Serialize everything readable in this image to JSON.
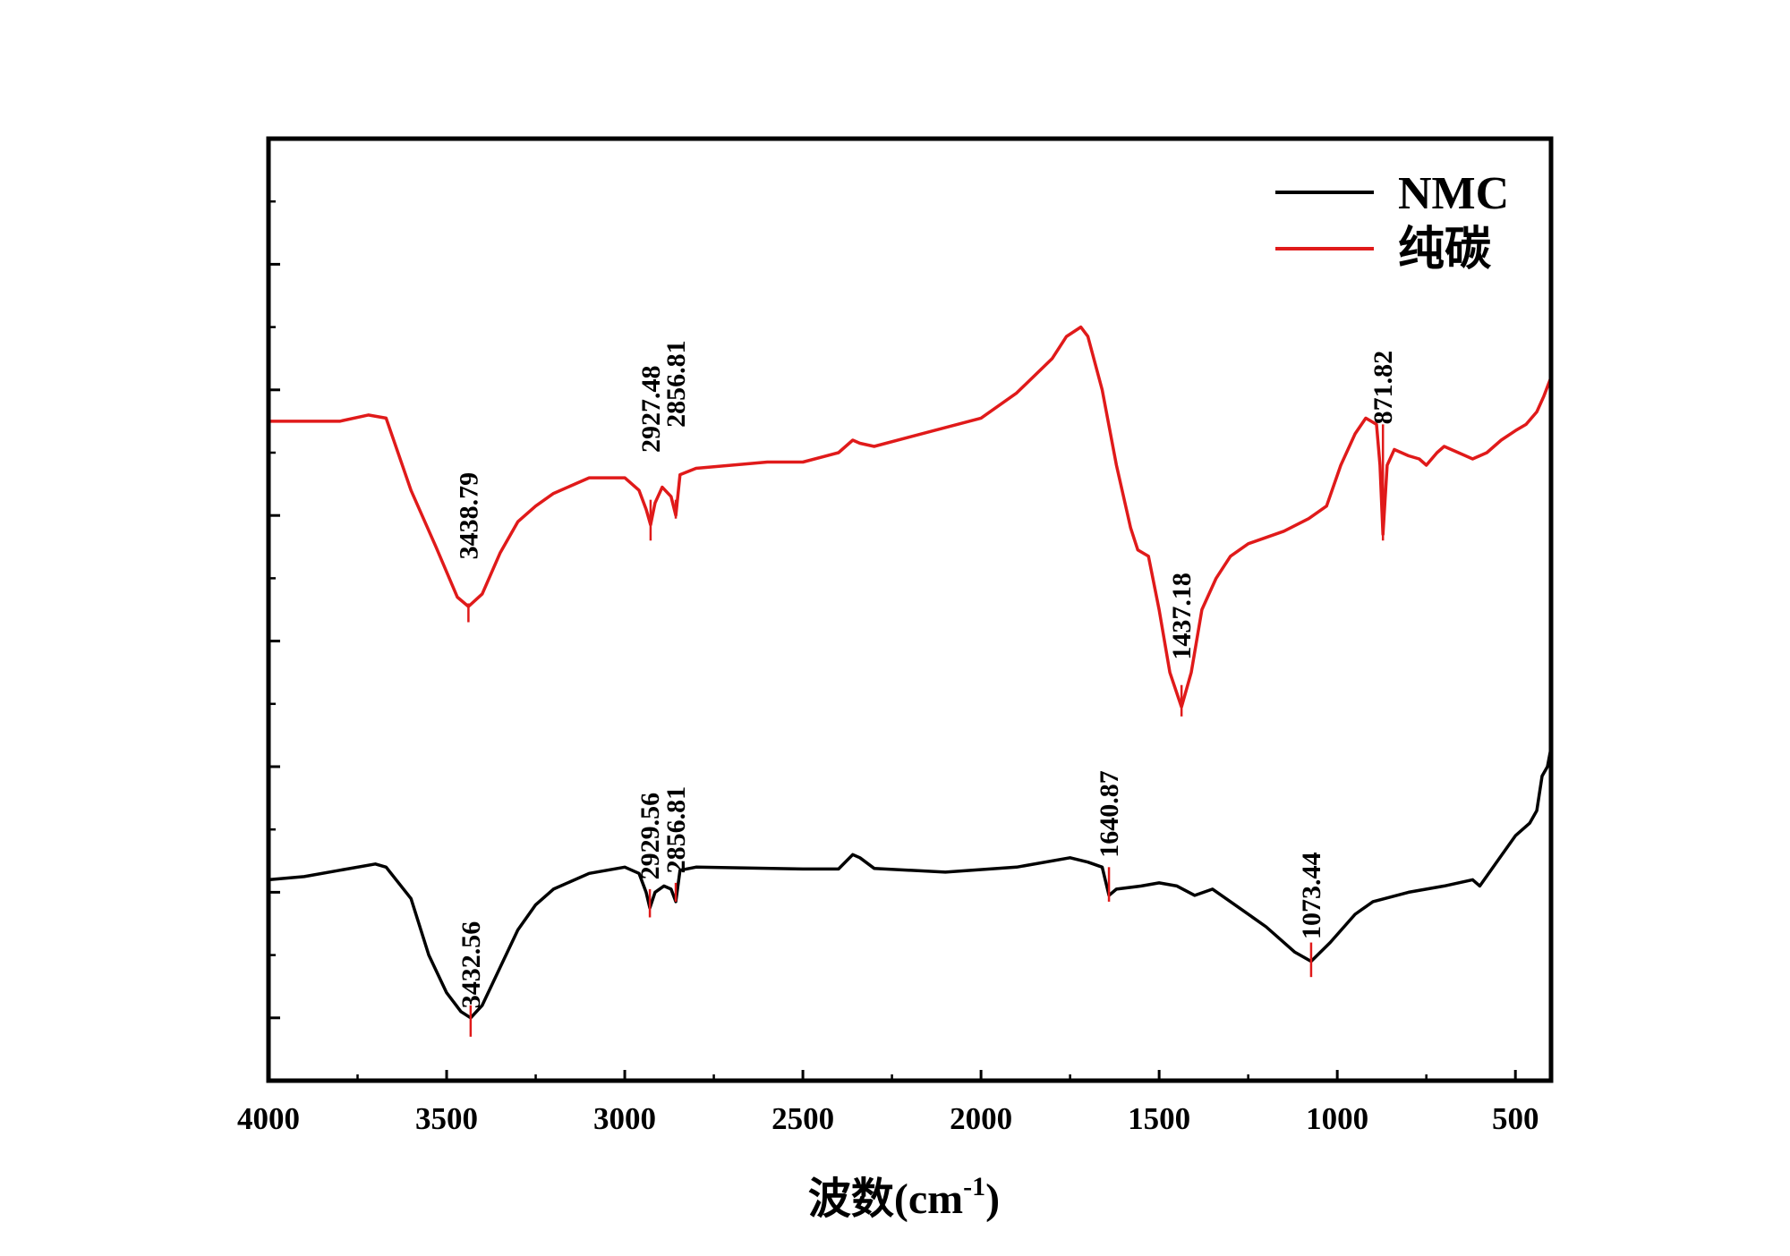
{
  "chart_data": {
    "type": "line",
    "title": "",
    "xlabel": "波数(cm",
    "xlabel_sup": "-1",
    "xlabel_close": ")",
    "ylabel": "",
    "xlim": [
      4000,
      400
    ],
    "ylim": [
      0,
      15
    ],
    "x_ticks": [
      4000,
      3500,
      3000,
      2500,
      2000,
      1500,
      1000,
      500
    ],
    "x_tick_labels": [
      "4000",
      "3500",
      "3000",
      "2500",
      "2000",
      "1500",
      "1000",
      "500"
    ],
    "x_minor_step": 250,
    "y_major_ticks": [
      1,
      3,
      5,
      7,
      9,
      11,
      13
    ],
    "y_minor_ticks": [
      2,
      4,
      6,
      8,
      10,
      12,
      14
    ],
    "legend_position": "top-right",
    "series": [
      {
        "name": "NMC",
        "color": "#000000",
        "points": [
          [
            4000,
            3.2
          ],
          [
            3900,
            3.25
          ],
          [
            3800,
            3.35
          ],
          [
            3700,
            3.45
          ],
          [
            3670,
            3.4
          ],
          [
            3600,
            2.9
          ],
          [
            3550,
            2.0
          ],
          [
            3500,
            1.4
          ],
          [
            3460,
            1.1
          ],
          [
            3432.56,
            1.0
          ],
          [
            3400,
            1.2
          ],
          [
            3350,
            1.8
          ],
          [
            3300,
            2.4
          ],
          [
            3250,
            2.8
          ],
          [
            3200,
            3.05
          ],
          [
            3100,
            3.3
          ],
          [
            3000,
            3.4
          ],
          [
            2960,
            3.3
          ],
          [
            2940,
            3.0
          ],
          [
            2929.56,
            2.75
          ],
          [
            2915,
            3.0
          ],
          [
            2890,
            3.1
          ],
          [
            2870,
            3.05
          ],
          [
            2856.81,
            2.85
          ],
          [
            2845,
            3.35
          ],
          [
            2800,
            3.4
          ],
          [
            2500,
            3.37
          ],
          [
            2400,
            3.37
          ],
          [
            2360,
            3.6
          ],
          [
            2340,
            3.55
          ],
          [
            2300,
            3.38
          ],
          [
            2100,
            3.32
          ],
          [
            1900,
            3.4
          ],
          [
            1750,
            3.55
          ],
          [
            1700,
            3.48
          ],
          [
            1660,
            3.4
          ],
          [
            1640.87,
            2.95
          ],
          [
            1620,
            3.05
          ],
          [
            1550,
            3.1
          ],
          [
            1500,
            3.15
          ],
          [
            1450,
            3.1
          ],
          [
            1400,
            2.95
          ],
          [
            1350,
            3.05
          ],
          [
            1300,
            2.85
          ],
          [
            1200,
            2.45
          ],
          [
            1120,
            2.05
          ],
          [
            1073.44,
            1.9
          ],
          [
            1020,
            2.2
          ],
          [
            950,
            2.65
          ],
          [
            900,
            2.85
          ],
          [
            800,
            3.0
          ],
          [
            700,
            3.1
          ],
          [
            620,
            3.2
          ],
          [
            600,
            3.1
          ],
          [
            550,
            3.5
          ],
          [
            500,
            3.9
          ],
          [
            460,
            4.1
          ],
          [
            440,
            4.3
          ],
          [
            425,
            4.85
          ],
          [
            410,
            5.0
          ],
          [
            400,
            5.3
          ]
        ]
      },
      {
        "name": "纯碳",
        "color": "#e01a1a",
        "points": [
          [
            4000,
            10.5
          ],
          [
            3800,
            10.5
          ],
          [
            3720,
            10.6
          ],
          [
            3670,
            10.55
          ],
          [
            3600,
            9.4
          ],
          [
            3530,
            8.5
          ],
          [
            3470,
            7.7
          ],
          [
            3438.79,
            7.55
          ],
          [
            3400,
            7.75
          ],
          [
            3350,
            8.4
          ],
          [
            3300,
            8.9
          ],
          [
            3250,
            9.15
          ],
          [
            3200,
            9.35
          ],
          [
            3100,
            9.6
          ],
          [
            3000,
            9.6
          ],
          [
            2960,
            9.4
          ],
          [
            2940,
            9.1
          ],
          [
            2927.48,
            8.85
          ],
          [
            2915,
            9.2
          ],
          [
            2895,
            9.45
          ],
          [
            2870,
            9.3
          ],
          [
            2856.81,
            9.0
          ],
          [
            2845,
            9.65
          ],
          [
            2800,
            9.75
          ],
          [
            2600,
            9.85
          ],
          [
            2500,
            9.85
          ],
          [
            2400,
            10.0
          ],
          [
            2360,
            10.2
          ],
          [
            2340,
            10.15
          ],
          [
            2300,
            10.1
          ],
          [
            2200,
            10.25
          ],
          [
            2000,
            10.55
          ],
          [
            1900,
            10.95
          ],
          [
            1800,
            11.5
          ],
          [
            1760,
            11.85
          ],
          [
            1720,
            12.0
          ],
          [
            1700,
            11.85
          ],
          [
            1660,
            11.0
          ],
          [
            1620,
            9.8
          ],
          [
            1580,
            8.8
          ],
          [
            1560,
            8.45
          ],
          [
            1530,
            8.35
          ],
          [
            1500,
            7.5
          ],
          [
            1470,
            6.5
          ],
          [
            1437.18,
            5.95
          ],
          [
            1410,
            6.5
          ],
          [
            1380,
            7.5
          ],
          [
            1340,
            8.0
          ],
          [
            1300,
            8.35
          ],
          [
            1250,
            8.55
          ],
          [
            1200,
            8.65
          ],
          [
            1150,
            8.75
          ],
          [
            1080,
            8.95
          ],
          [
            1030,
            9.15
          ],
          [
            990,
            9.8
          ],
          [
            950,
            10.3
          ],
          [
            920,
            10.55
          ],
          [
            890,
            10.45
          ],
          [
            880,
            9.8
          ],
          [
            871.82,
            8.7
          ],
          [
            860,
            9.8
          ],
          [
            840,
            10.05
          ],
          [
            800,
            9.95
          ],
          [
            770,
            9.9
          ],
          [
            750,
            9.8
          ],
          [
            720,
            10.0
          ],
          [
            700,
            10.1
          ],
          [
            660,
            10.0
          ],
          [
            620,
            9.9
          ],
          [
            580,
            10.0
          ],
          [
            540,
            10.2
          ],
          [
            500,
            10.35
          ],
          [
            470,
            10.45
          ],
          [
            440,
            10.65
          ],
          [
            420,
            10.9
          ],
          [
            400,
            11.2
          ]
        ]
      }
    ],
    "annotations": [
      {
        "series": "纯碳",
        "x": 3438.79,
        "label": "3438.79",
        "line_from": 7.6,
        "line_to": 7.3,
        "label_base": 8.3
      },
      {
        "series": "纯碳",
        "x": 2927.48,
        "label": "2927.48",
        "line_from": 9.25,
        "line_to": 8.6,
        "label_base": 10.0
      },
      {
        "series": "纯碳",
        "x": 2856.81,
        "label": "2856.81",
        "line_from": 9.25,
        "line_to": 8.95,
        "label_base": 10.4
      },
      {
        "series": "纯碳",
        "x": 1437.18,
        "label": "1437.18",
        "line_from": 6.3,
        "line_to": 5.8,
        "label_base": 6.7
      },
      {
        "series": "纯碳",
        "x": 871.82,
        "label": "871.82",
        "line_from": 10.45,
        "line_to": 8.6,
        "label_base": 10.45
      },
      {
        "series": "NMC",
        "x": 3432.56,
        "label": "3432.56",
        "line_from": 1.2,
        "line_to": 0.7,
        "label_base": 1.15
      },
      {
        "series": "NMC",
        "x": 2929.56,
        "label": "2929.56",
        "line_from": 3.05,
        "line_to": 2.6,
        "label_base": 3.2
      },
      {
        "series": "NMC",
        "x": 2856.81,
        "label": "2856.81",
        "line_from": 3.15,
        "line_to": 2.85,
        "label_base": 3.3
      },
      {
        "series": "NMC",
        "x": 1640.87,
        "label": "1640.87",
        "line_from": 3.4,
        "line_to": 2.85,
        "label_base": 3.55
      },
      {
        "series": "NMC",
        "x": 1073.44,
        "label": "1073.44",
        "line_from": 2.2,
        "line_to": 1.65,
        "label_base": 2.25
      }
    ]
  }
}
